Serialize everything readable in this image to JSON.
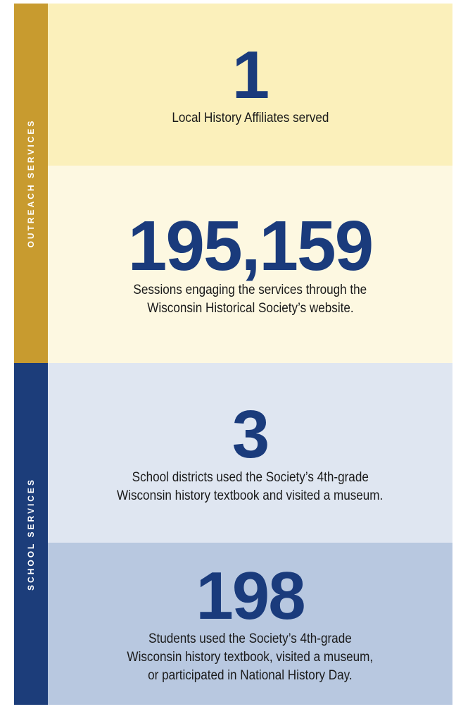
{
  "sections": [
    {
      "label": "OUTREACH SERVICES",
      "stats": [
        {
          "number": "1",
          "description": [
            "Local History Affiliates served"
          ]
        },
        {
          "number": "195,159",
          "description": [
            "Sessions engaging the services through the",
            "Wisconsin Historical Society’s website."
          ]
        }
      ]
    },
    {
      "label": "SCHOOL SERVICES",
      "stats": [
        {
          "number": "3",
          "description": [
            "School districts used the Society’s 4th-grade",
            "Wisconsin history textbook and visited a museum."
          ]
        },
        {
          "number": "198",
          "description": [
            "Students used the Society’s 4th-grade",
            "Wisconsin history textbook, visited a museum,",
            "or participated in National History Day."
          ]
        }
      ]
    }
  ]
}
